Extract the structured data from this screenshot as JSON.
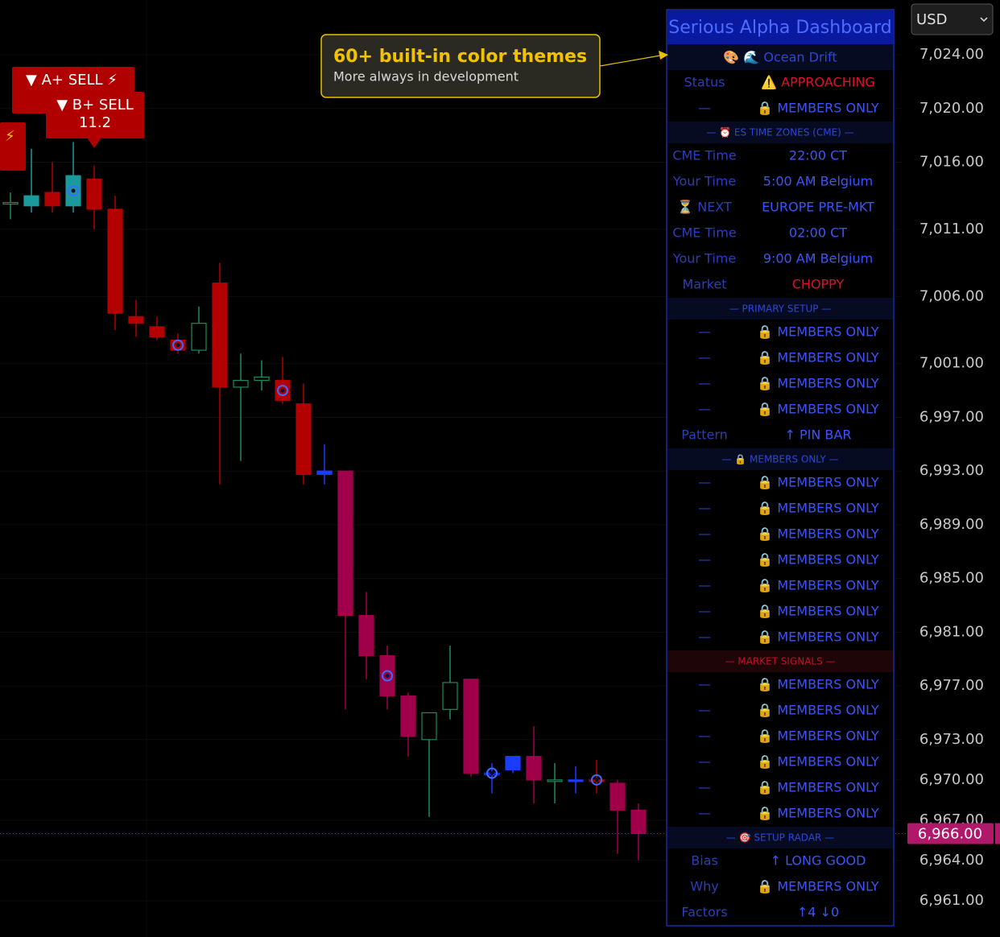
{
  "chart_data": {
    "type": "candlestick",
    "categories": [
      null,
      null,
      null,
      null,
      null,
      null,
      null,
      null,
      null,
      null,
      null,
      null,
      null,
      null,
      null,
      null,
      null,
      null,
      null,
      null,
      null,
      null,
      null,
      null,
      null,
      null,
      null,
      null,
      null,
      null,
      null
    ],
    "open": [
      7013.0,
      7012.75,
      7013.75,
      7012.75,
      7014.75,
      7012.5,
      7004.5,
      7003.75,
      7002.75,
      7002.0,
      7007.0,
      6999.25,
      6999.75,
      6999.75,
      6998.0,
      6992.75,
      6993.0,
      6982.25,
      6979.25,
      6976.25,
      6973.0,
      6975.25,
      6977.5,
      6970.5,
      6970.75,
      6971.75,
      6970.0,
      6970.0,
      6970.0,
      6969.75,
      6967.75
    ],
    "high": [
      7013.75,
      7017.0,
      7016.0,
      7017.5,
      7015.75,
      7013.5,
      7005.75,
      7004.5,
      7003.25,
      7005.25,
      7008.5,
      7001.75,
      7001.25,
      7001.5,
      6999.5,
      6995.0,
      6993.0,
      6984.0,
      6980.0,
      6976.5,
      6975.0,
      6980.0,
      6977.5,
      6971.25,
      6971.75,
      6974.0,
      6971.25,
      6971.0,
      6971.5,
      6970.0,
      6968.25
    ],
    "low": [
      7011.75,
      7012.25,
      7012.25,
      7012.25,
      7011.0,
      7003.5,
      7003.0,
      7002.75,
      7001.75,
      7001.75,
      6992.0,
      6993.75,
      6999.0,
      6998.0,
      6992.0,
      6992.0,
      6975.25,
      6977.5,
      6975.25,
      6971.75,
      6967.25,
      6974.5,
      6970.25,
      6969.0,
      6970.5,
      6968.25,
      6968.25,
      6969.0,
      6969.0,
      6964.5,
      6964.0
    ],
    "close": [
      7013.0,
      7013.5,
      7012.75,
      7015.0,
      7012.5,
      7004.75,
      7004.0,
      7003.0,
      7002.0,
      7004.0,
      6999.25,
      6999.75,
      7000.0,
      6998.25,
      6992.75,
      6993.0,
      6982.25,
      6979.25,
      6976.25,
      6973.25,
      6975.0,
      6977.25,
      6970.5,
      6970.5,
      6971.75,
      6970.0,
      6970.0,
      6970.0,
      6970.0,
      6967.75,
      6966.0
    ],
    "colors": [
      "#1f8a5a",
      "#1a9a9a",
      "#b30000",
      "#1a9a9a",
      "#b30000",
      "#b30000",
      "#b30000",
      "#b30000",
      "#b30000",
      "#1f8a5a",
      "#b30000",
      "#1f8a5a",
      "#1f8a5a",
      "#b30000",
      "#b30000",
      "#1a3cff",
      "#a0004a",
      "#a0004a",
      "#a0004a",
      "#a0004a",
      "#1f8a5a",
      "#1f8a5a",
      "#a0004a",
      "#1a3cff",
      "#1a3cff",
      "#a0004a",
      "#1f8a5a",
      "#1a3cff",
      "#b30000",
      "#a0004a",
      "#a0004a"
    ],
    "hollow": [
      true,
      false,
      false,
      false,
      false,
      false,
      false,
      false,
      false,
      true,
      false,
      true,
      true,
      false,
      false,
      false,
      false,
      false,
      false,
      false,
      true,
      true,
      false,
      true,
      false,
      false,
      true,
      false,
      false,
      false,
      false
    ],
    "circle_markers": [
      3,
      8,
      13,
      18,
      23,
      28
    ],
    "ylim": [
      6958.3,
      7028.08
    ],
    "yticks": [
      {
        "value": 7024,
        "label": "7,024.00"
      },
      {
        "value": 7020,
        "label": "7,020.00"
      },
      {
        "value": 7016,
        "label": "7,016.00"
      },
      {
        "value": 7011,
        "label": "7,011.00"
      },
      {
        "value": 7006,
        "label": "7,006.00"
      },
      {
        "value": 7001,
        "label": "7,001.00"
      },
      {
        "value": 6997,
        "label": "6,997.00"
      },
      {
        "value": 6993,
        "label": "6,993.00"
      },
      {
        "value": 6989,
        "label": "6,989.00"
      },
      {
        "value": 6985,
        "label": "6,985.00"
      },
      {
        "value": 6981,
        "label": "6,981.00"
      },
      {
        "value": 6977,
        "label": "6,977.00"
      },
      {
        "value": 6973,
        "label": "6,973.00"
      },
      {
        "value": 6970,
        "label": "6,970.00"
      },
      {
        "value": 6967,
        "label": "6,967.00"
      },
      {
        "value": 6964,
        "label": "6,964.00"
      },
      {
        "value": 6961,
        "label": "6,961.00"
      }
    ],
    "grid": true,
    "last_price": {
      "value": 6966,
      "label": "6,966.00"
    }
  },
  "currency": "USD",
  "signals": [
    {
      "text": "▼ A+ SELL ⚡"
    },
    {
      "text": "▼ B+ SELL",
      "score": 11.2
    },
    {
      "text": "⚡"
    }
  ],
  "callout": {
    "title": "60+ built-in color themes",
    "subtitle": "More always in development"
  },
  "dashboard": {
    "title": "Serious Alpha Dashboard",
    "theme": "🎨 🌊 Ocean Drift",
    "rows": [
      {
        "label": "Status",
        "value": "⚠️ APPROACHING",
        "color": "#e0102a"
      },
      {
        "label": "—",
        "value": "🔒 MEMBERS ONLY"
      },
      {
        "section": "— ⏰ ES TIME ZONES (CME) —"
      },
      {
        "label": "CME Time",
        "value": "22:00 CT"
      },
      {
        "label": "Your Time",
        "value": "5:00 AM Belgium"
      },
      {
        "label": "⏳ NEXT",
        "value": "EUROPE PRE-MKT"
      },
      {
        "label": "CME Time",
        "value": "02:00 CT"
      },
      {
        "label": "Your Time",
        "value": "9:00 AM Belgium"
      },
      {
        "label": "Market",
        "value": "CHOPPY",
        "color": "#e0102a"
      },
      {
        "section": "— PRIMARY SETUP —"
      },
      {
        "label": "—",
        "value": "🔒 MEMBERS ONLY"
      },
      {
        "label": "—",
        "value": "🔒 MEMBERS ONLY"
      },
      {
        "label": "—",
        "value": "🔒 MEMBERS ONLY"
      },
      {
        "label": "—",
        "value": "🔒 MEMBERS ONLY"
      },
      {
        "label": "Pattern",
        "value": "↑ PIN BAR"
      },
      {
        "section": "— 🔒 MEMBERS ONLY —"
      },
      {
        "label": "—",
        "value": "🔒 MEMBERS ONLY"
      },
      {
        "label": "—",
        "value": "🔒 MEMBERS ONLY"
      },
      {
        "label": "—",
        "value": "🔒 MEMBERS ONLY"
      },
      {
        "label": "—",
        "value": "🔒 MEMBERS ONLY"
      },
      {
        "label": "—",
        "value": "🔒 MEMBERS ONLY"
      },
      {
        "label": "—",
        "value": "🔒 MEMBERS ONLY"
      },
      {
        "label": "—",
        "value": "🔒 MEMBERS ONLY"
      },
      {
        "section": "— MARKET SIGNALS —",
        "color": "#c0102a",
        "background": "#1e0508"
      },
      {
        "label": "—",
        "value": "🔒 MEMBERS ONLY"
      },
      {
        "label": "—",
        "value": "🔒 MEMBERS ONLY"
      },
      {
        "label": "—",
        "value": "🔒 MEMBERS ONLY"
      },
      {
        "label": "—",
        "value": "🔒 MEMBERS ONLY"
      },
      {
        "label": "—",
        "value": "🔒 MEMBERS ONLY"
      },
      {
        "label": "—",
        "value": "🔒 MEMBERS ONLY"
      },
      {
        "section": "— 🎯 SETUP RADAR —"
      },
      {
        "label": "Bias",
        "value": "↑ LONG GOOD"
      },
      {
        "label": "Why",
        "value": "🔒 MEMBERS ONLY"
      },
      {
        "label": "Factors",
        "value": "↑4 ↓0"
      }
    ]
  }
}
